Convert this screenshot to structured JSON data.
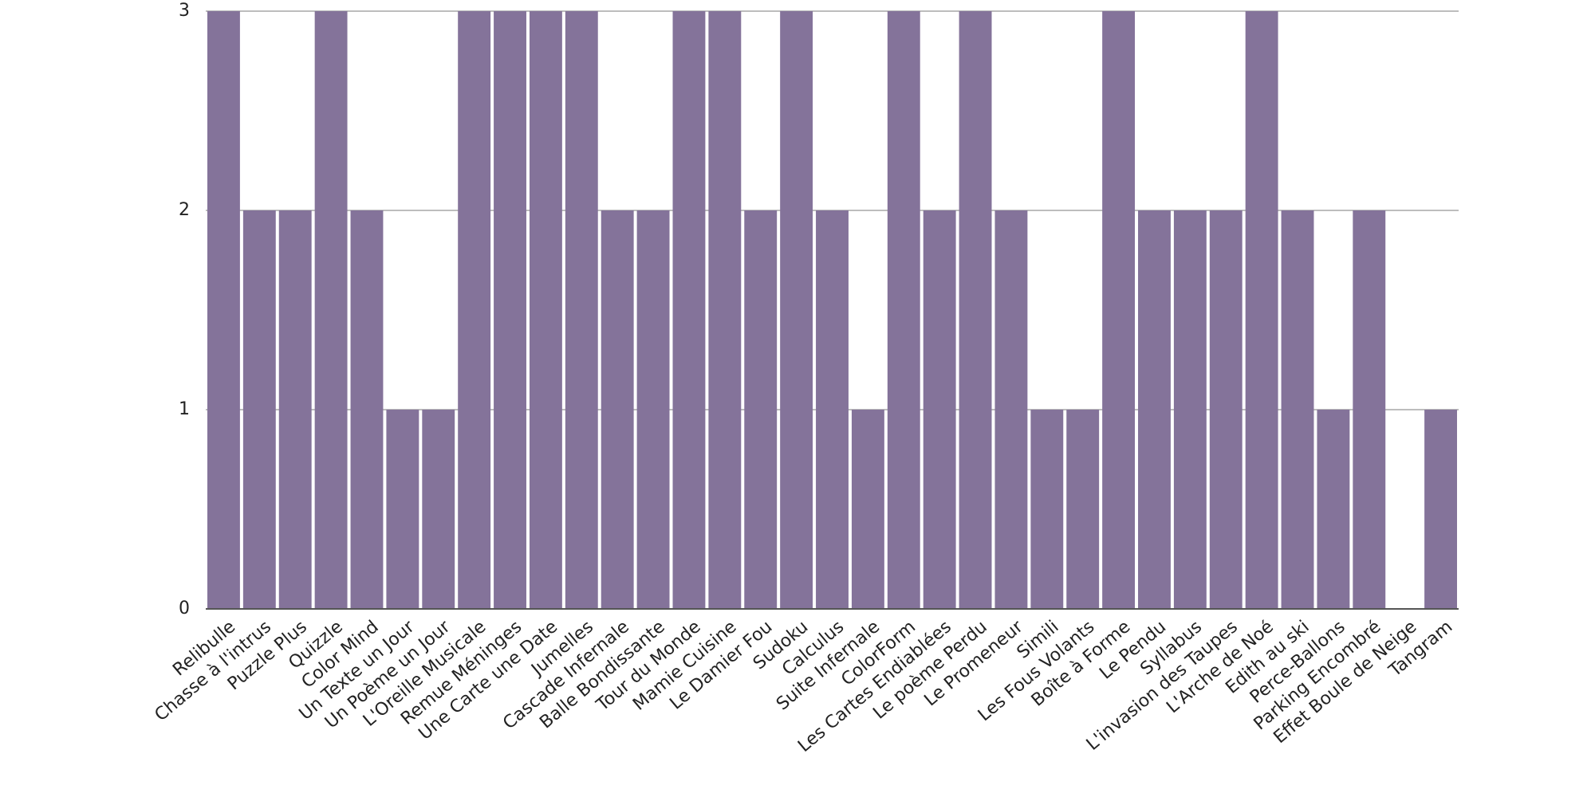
{
  "chart_data": {
    "type": "bar",
    "categories": [
      "Relibulle",
      "Chasse à l'intrus",
      "Puzzle Plus",
      "Quizzle",
      "Color Mind",
      "Un Texte un Jour",
      "Un Poème un Jour",
      "L'Oreille Musicale",
      "Remue Méninges",
      "Une Carte une Date",
      "Jumelles",
      "Cascade Infernale",
      "Balle Bondissante",
      "Tour du Monde",
      "Mamie Cuisine",
      "Le Damier Fou",
      "Sudoku",
      "Calculus",
      "Suite Infernale",
      "ColorForm",
      "Les Cartes Endiablées",
      "Le poème Perdu",
      "Le Promeneur",
      "Simili",
      "Les Fous Volants",
      "Boîte à Forme",
      "Le Pendu",
      "Syllabus",
      "L'invasion des Taupes",
      "L'Arche de Noé",
      "Edith au ski",
      "Perce-Ballons",
      "Parking Encombré",
      "Effet Boule de Neige",
      "Tangram"
    ],
    "values": [
      3,
      2,
      2,
      3,
      2,
      1,
      1,
      3,
      3,
      3,
      3,
      2,
      2,
      3,
      3,
      2,
      3,
      2,
      1,
      3,
      2,
      3,
      2,
      1,
      1,
      3,
      2,
      2,
      2,
      3,
      2,
      1,
      2,
      0,
      1
    ],
    "color": "#84739a",
    "ylim": [
      0,
      3
    ],
    "yticks": [
      0,
      1,
      2,
      3
    ],
    "grid": true
  }
}
